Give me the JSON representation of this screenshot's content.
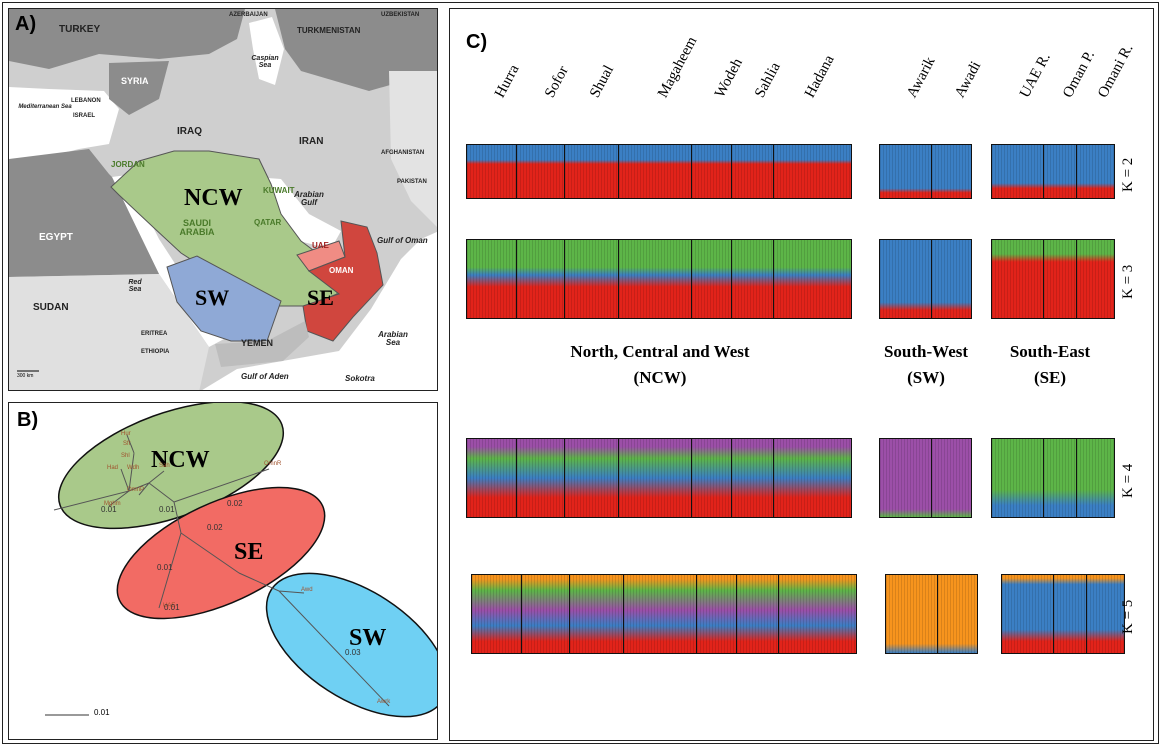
{
  "panel_a": {
    "label": "A)",
    "countries": [
      "TURKEY",
      "AZERBAIJAN",
      "UZBEKISTAN",
      "TURKMENISTAN",
      "Caspian Sea",
      "SYRIA",
      "Mediterranean Sea",
      "LEBANON",
      "ISRAEL",
      "IRAQ",
      "IRAN",
      "AFGHANISTAN",
      "JORDAN",
      "KUWAIT",
      "PAKISTAN",
      "EGYPT",
      "SAUDI ARABIA",
      "QATAR",
      "Arabian Gulf",
      "UAE",
      "Gulf of Oman",
      "OMAN",
      "Red Sea",
      "SUDAN",
      "YEMEN",
      "ERITREA",
      "ETHIOPIA",
      "Gulf of Aden",
      "Sokotra",
      "Arabian Sea"
    ],
    "regions": [
      "NCW",
      "SW",
      "SE"
    ],
    "scale": "300 km"
  },
  "panel_b": {
    "label": "B)",
    "clusters": [
      "NCW",
      "SE",
      "SW"
    ],
    "tips": [
      "Hur",
      "Sfr",
      "Shl",
      "Wdh",
      "Sah",
      "Had",
      "Mghm",
      "OmnR",
      "OmnP",
      "UAE",
      "Awd",
      "Awrk"
    ],
    "branch_labels": [
      "0.01",
      "0.01",
      "0.02",
      "0.02",
      "0.01",
      "0.01",
      "0.03"
    ],
    "scale": "0.01"
  },
  "panel_c": {
    "label": "C)",
    "populations": [
      "Hurra",
      "Sofor",
      "Shual",
      "Magaheem",
      "Wodeh",
      "Sahlia",
      "Hadana",
      "Awarik",
      "Awadi",
      "UAE R.",
      "Oman P.",
      "Omani R."
    ],
    "k_labels": [
      "K = 2",
      "K = 3",
      "K = 4",
      "K = 5"
    ],
    "groups": [
      {
        "name": "North, Central and West",
        "abbr": "(NCW)"
      },
      {
        "name": "South-West",
        "abbr": "(SW)"
      },
      {
        "name": "South-East",
        "abbr": "(SE)"
      }
    ]
  }
}
